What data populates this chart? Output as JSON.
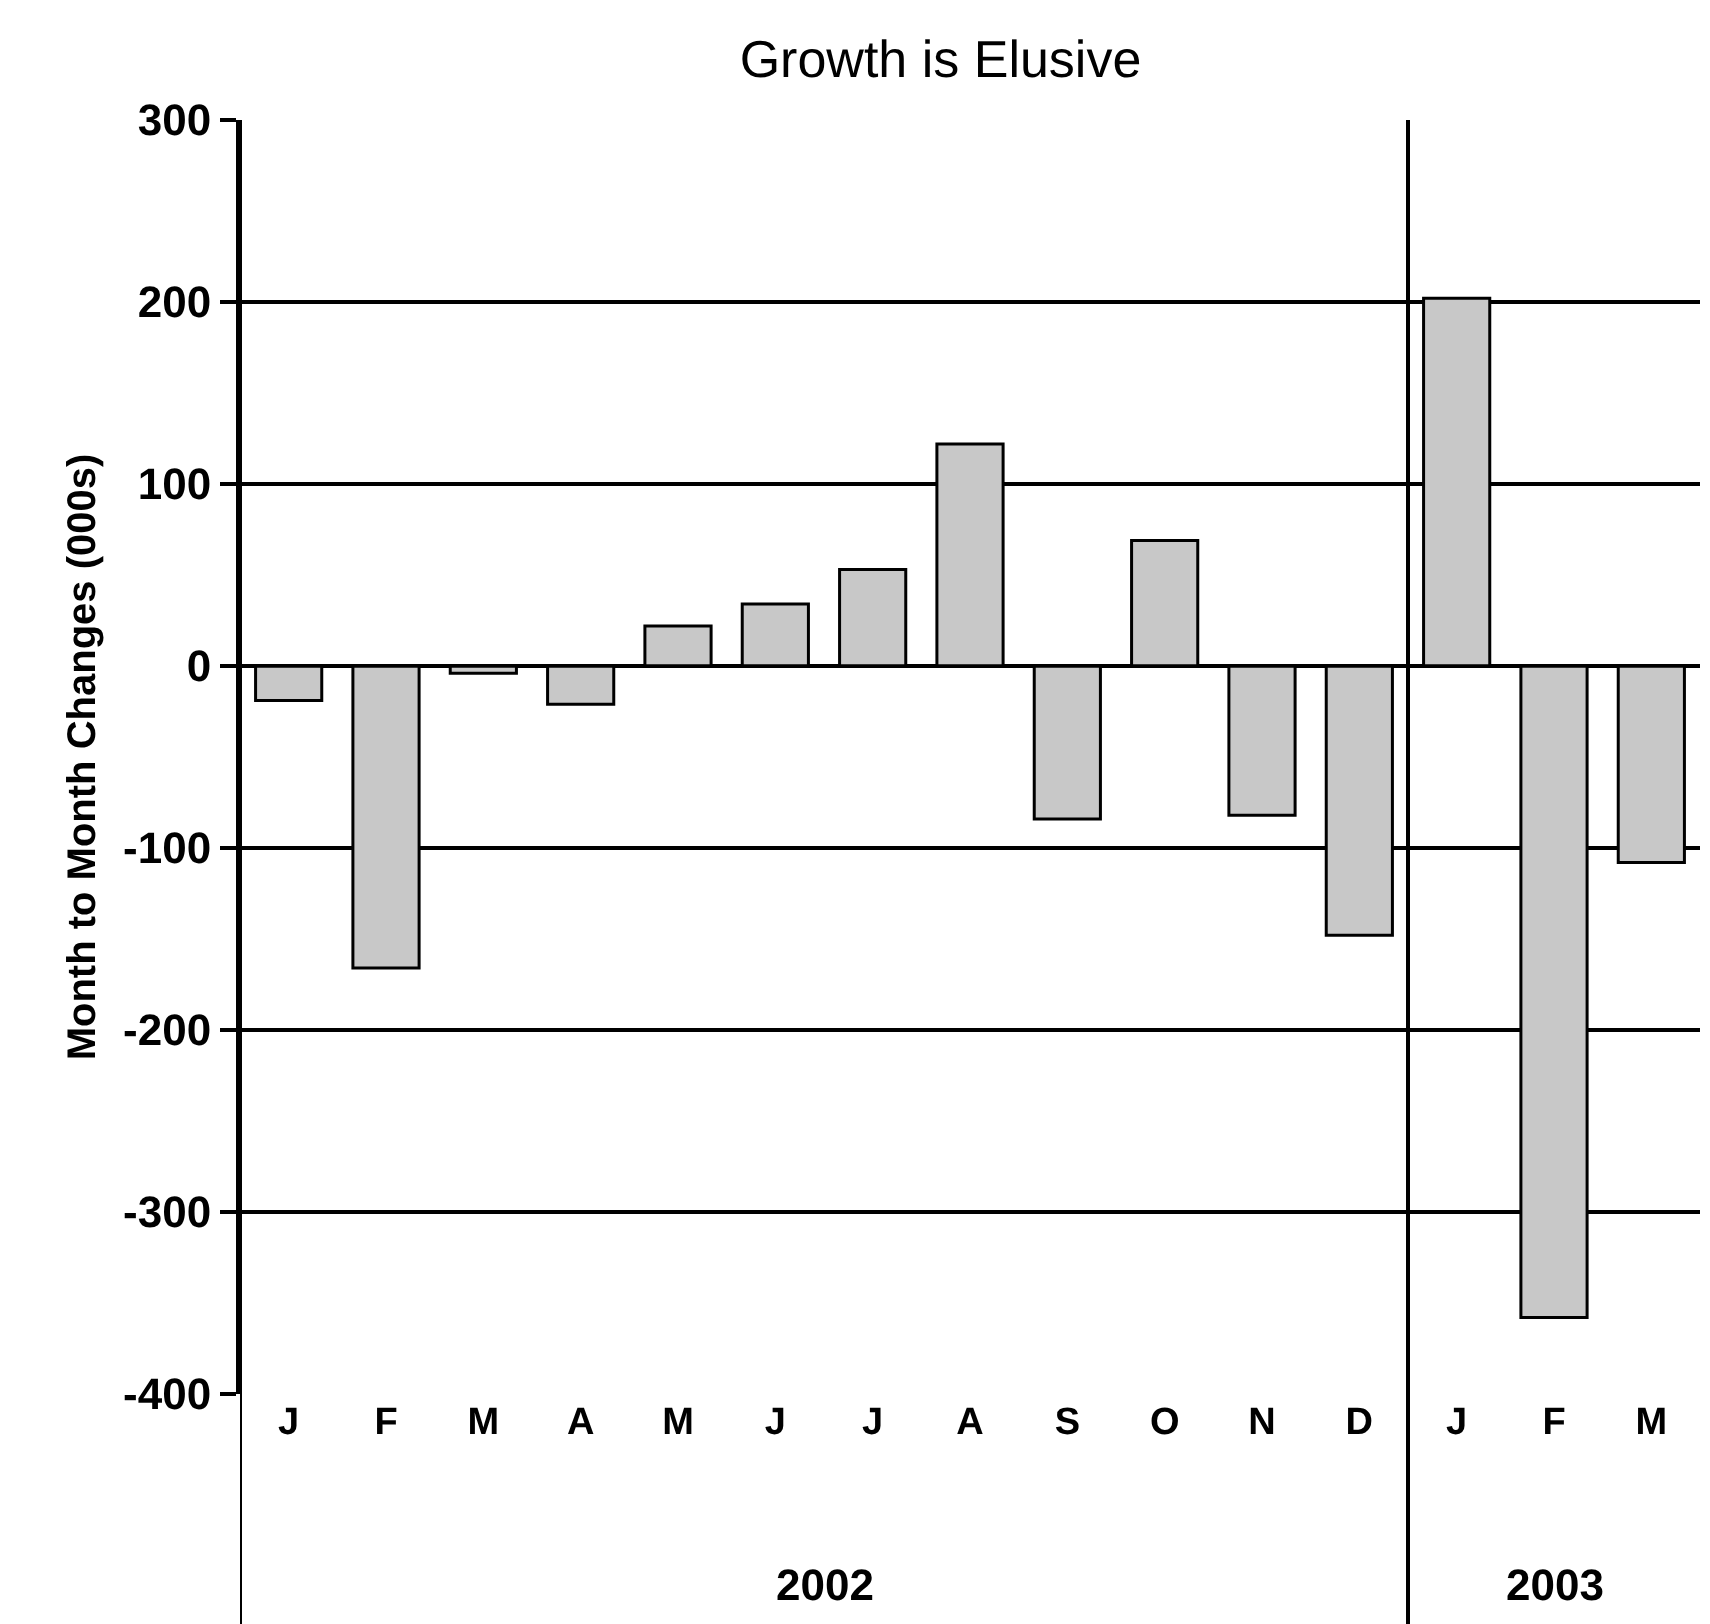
{
  "chart_data": {
    "type": "bar",
    "title": "Growth is Elusive",
    "ylabel": "Month to Month Changes (000s)",
    "categories": [
      "J",
      "F",
      "M",
      "A",
      "M",
      "J",
      "J",
      "A",
      "S",
      "O",
      "N",
      "D",
      "J",
      "F",
      "M"
    ],
    "values": [
      -19,
      -166,
      -4,
      -21,
      22,
      34,
      53,
      122,
      -84,
      69,
      -82,
      -148,
      202,
      -358,
      -108
    ],
    "color": "#c8c8c8",
    "ylim": [
      -400,
      300
    ],
    "yticks": [
      -400,
      -300,
      -200,
      -100,
      0,
      100,
      200,
      300
    ],
    "grid": "y",
    "annotations": [
      "2002",
      "2003"
    ]
  }
}
